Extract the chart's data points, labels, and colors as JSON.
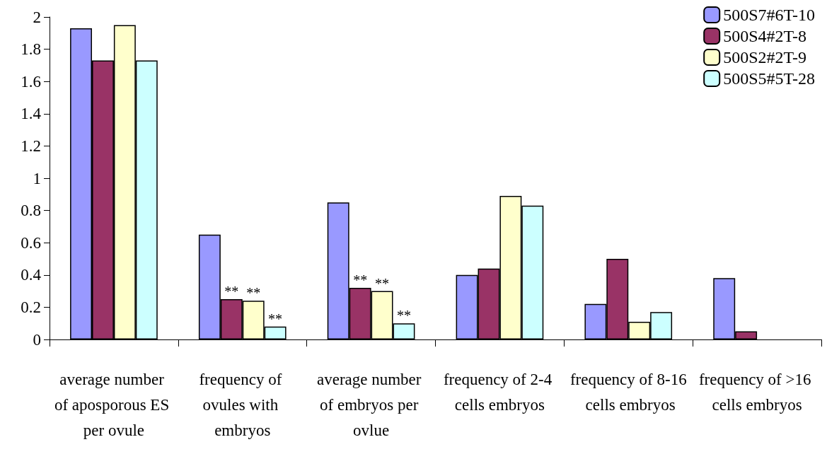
{
  "chart_data": {
    "type": "bar",
    "categories": [
      "average number of aposporous ES per ovule",
      "frequency of ovules with embryos",
      "average number of embryos per ovlue",
      "frequency of 2-4 cells embryos",
      "frequency of 8-16 cells embryos",
      "frequency of >16 cells embryos"
    ],
    "series": [
      {
        "name": "500S7#6T-10",
        "color": "#9999ff",
        "values": [
          1.93,
          0.65,
          0.85,
          0.4,
          0.22,
          0.38
        ]
      },
      {
        "name": "500S4#2T-8",
        "color": "#993366",
        "values": [
          1.73,
          0.25,
          0.32,
          0.44,
          0.5,
          0.05
        ]
      },
      {
        "name": "500S2#2T-9",
        "color": "#ffffcc",
        "values": [
          1.95,
          0.24,
          0.3,
          0.89,
          0.11,
          null
        ]
      },
      {
        "name": "500S5#5T-28",
        "color": "#ccffff",
        "values": [
          1.73,
          0.08,
          0.1,
          0.83,
          0.17,
          null
        ]
      }
    ],
    "ylim": [
      0,
      2
    ],
    "yticks": [
      0,
      0.2,
      0.4,
      0.6,
      0.8,
      1,
      1.2,
      1.4,
      1.6,
      1.8,
      2
    ],
    "annotations": [
      {
        "text": "**",
        "x": "frequency of ovules with embryos",
        "y": 0.25
      },
      {
        "text": "**",
        "x": "frequency of ovules with embryos",
        "y": 0.24
      },
      {
        "text": "**",
        "x": "frequency of ovules with embryos",
        "y": 0.08
      },
      {
        "text": "**",
        "x": "average number of embryos per ovlue",
        "y": 0.32
      },
      {
        "text": "**",
        "x": "average number of embryos per ovlue",
        "y": 0.3
      },
      {
        "text": "**",
        "x": "average number of embryos per ovlue",
        "y": 0.1
      }
    ],
    "grid": false,
    "legend": "top right"
  }
}
